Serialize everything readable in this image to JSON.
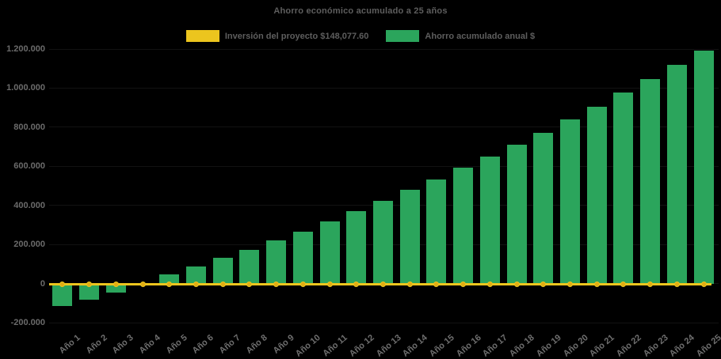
{
  "title": "Ahorro económico acumulado a 25 años",
  "legend": {
    "investment_label": "Inversión del proyecto $148,077.60",
    "savings_label": "Ahorro acumulado anual $"
  },
  "colors": {
    "background": "#000000",
    "bar_green": "#2ba55c",
    "line_gold": "#ecc51e",
    "marker_gold": "#e2ad14",
    "text_gray": "#5e5e5e",
    "axis_text_gray": "#6b6b6b"
  },
  "chart_data": {
    "type": "bar",
    "title": "Ahorro económico acumulado a 25 años",
    "categories": [
      "Año 1",
      "Año 2",
      "Año 3",
      "Año 4",
      "Año 5",
      "Año 6",
      "Año 7",
      "Año 8",
      "Año 9",
      "Año 10",
      "Año 11",
      "Año 12",
      "Año 13",
      "Año 14",
      "Año 15",
      "Año 16",
      "Año 17",
      "Año 18",
      "Año 19",
      "Año 20",
      "Año 21",
      "Año 22",
      "Año 23",
      "Año 24",
      "Año 25"
    ],
    "series": [
      {
        "name": "Ahorro acumulado anual $",
        "type": "bar",
        "color": "#2ba55c",
        "values": [
          -115000,
          -82000,
          -46000,
          -8000,
          45000,
          87000,
          130000,
          174000,
          220000,
          266000,
          318000,
          370000,
          422000,
          478000,
          531000,
          594000,
          650000,
          710000,
          773000,
          838000,
          905000,
          976000,
          1045000,
          1119000,
          1191000
        ]
      },
      {
        "name": "Inversión del proyecto $148,077.60",
        "type": "line",
        "color": "#ecc51e",
        "marker": "circle",
        "values": [
          0,
          0,
          0,
          0,
          0,
          0,
          0,
          0,
          0,
          0,
          0,
          0,
          0,
          0,
          0,
          0,
          0,
          0,
          0,
          0,
          0,
          0,
          0,
          0,
          0
        ]
      }
    ],
    "ylim": [
      -200000,
      1200000
    ],
    "yticks": [
      {
        "label": "1.200.000",
        "value": 1200000
      },
      {
        "label": "1.000.000",
        "value": 1000000
      },
      {
        "label": "800.000",
        "value": 800000
      },
      {
        "label": "600.000",
        "value": 600000
      },
      {
        "label": "400.000",
        "value": 400000
      },
      {
        "label": "200.000",
        "value": 200000
      },
      {
        "label": "0",
        "value": 0
      },
      {
        "label": "-200.000",
        "value": -200000
      }
    ],
    "grid": false,
    "legend_position": "top",
    "xlabel": "",
    "ylabel": ""
  }
}
